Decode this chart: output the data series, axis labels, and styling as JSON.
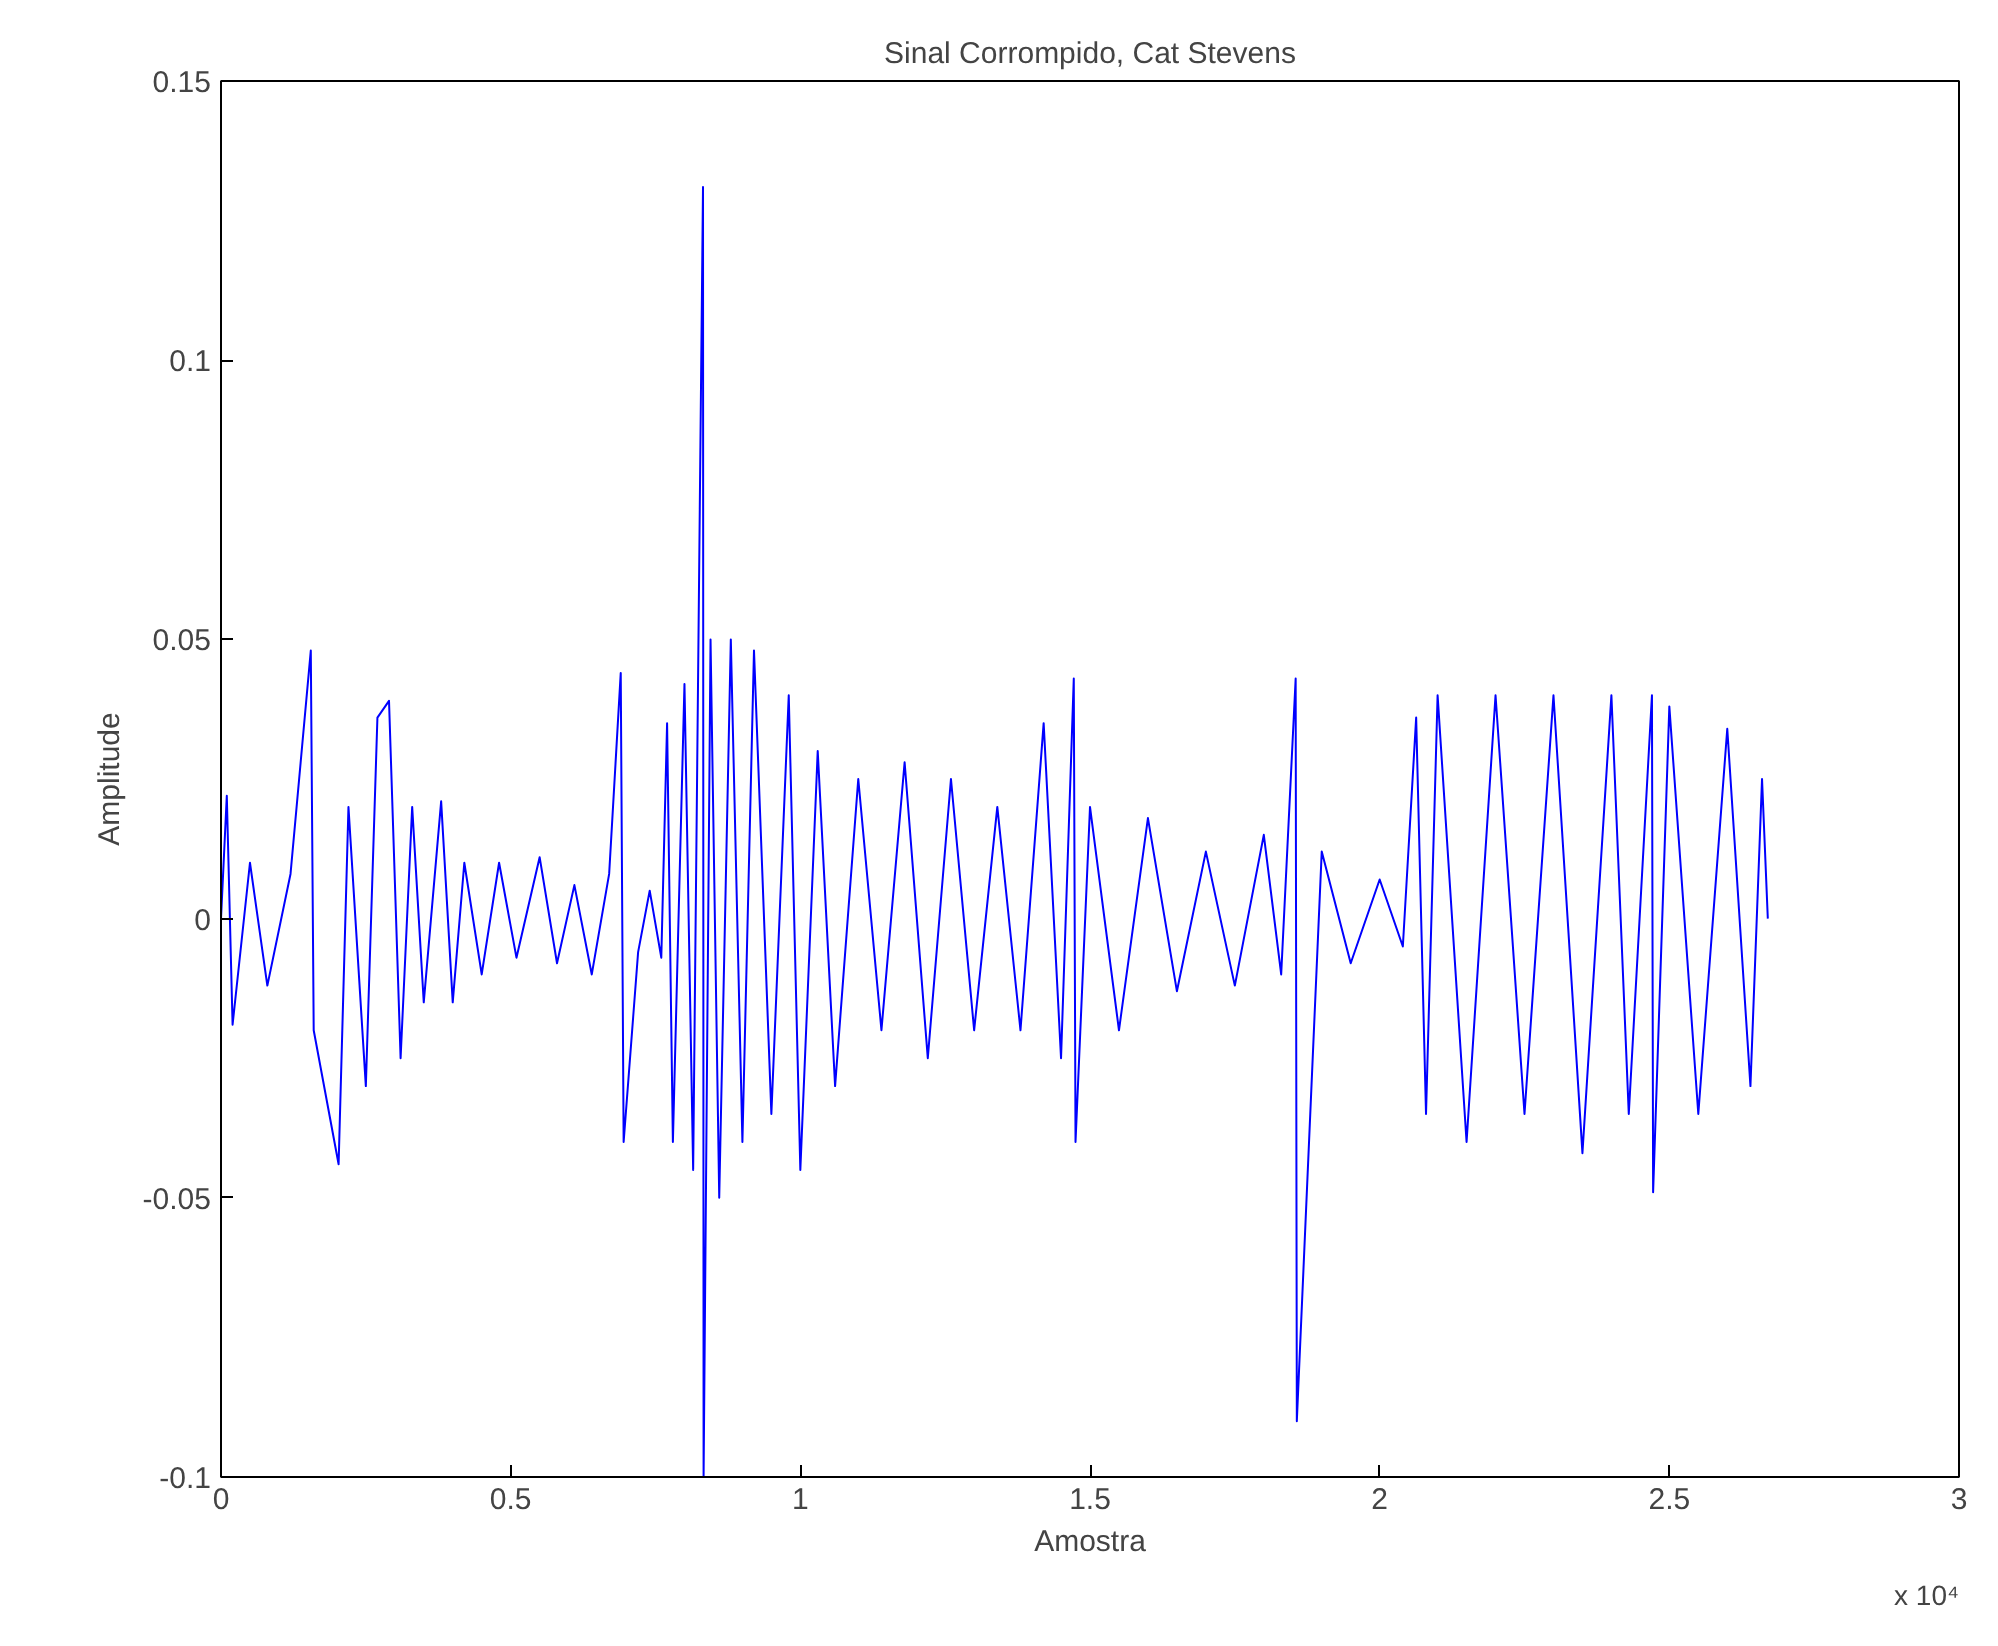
{
  "chart_data": {
    "type": "line",
    "title": "Sinal Corrompido, Cat Stevens",
    "xlabel": "Amostra",
    "ylabel": "Amplitude",
    "annotations": [
      "x 10⁴"
    ],
    "series": [
      {
        "color": "#0000ff",
        "x": [
          0.0,
          0.01,
          0.02,
          0.05,
          0.08,
          0.12,
          0.155,
          0.16,
          0.203,
          0.22,
          0.25,
          0.27,
          0.29,
          0.31,
          0.33,
          0.35,
          0.38,
          0.4,
          0.42,
          0.45,
          0.48,
          0.51,
          0.55,
          0.58,
          0.61,
          0.64,
          0.67,
          0.69,
          0.695,
          0.72,
          0.74,
          0.76,
          0.77,
          0.78,
          0.8,
          0.815,
          0.832,
          0.833,
          0.845,
          0.86,
          0.88,
          0.9,
          0.92,
          0.95,
          0.98,
          1.0,
          1.03,
          1.06,
          1.1,
          1.14,
          1.18,
          1.22,
          1.26,
          1.3,
          1.34,
          1.38,
          1.42,
          1.45,
          1.472,
          1.475,
          1.5,
          1.55,
          1.6,
          1.65,
          1.7,
          1.75,
          1.8,
          1.83,
          1.855,
          1.857,
          1.9,
          1.95,
          2.0,
          2.04,
          2.063,
          2.08,
          2.1,
          2.15,
          2.2,
          2.25,
          2.3,
          2.35,
          2.4,
          2.43,
          2.47,
          2.472,
          2.5,
          2.55,
          2.6,
          2.64,
          2.66,
          2.67
        ],
        "values": [
          0.0,
          0.022,
          -0.019,
          0.01,
          -0.012,
          0.008,
          0.048,
          -0.02,
          -0.044,
          0.02,
          -0.03,
          0.036,
          0.039,
          -0.025,
          0.02,
          -0.015,
          0.021,
          -0.015,
          0.01,
          -0.01,
          0.01,
          -0.007,
          0.011,
          -0.008,
          0.006,
          -0.01,
          0.008,
          0.044,
          -0.04,
          -0.006,
          0.005,
          -0.007,
          0.035,
          -0.04,
          0.042,
          -0.045,
          0.131,
          -0.1,
          0.05,
          -0.05,
          0.05,
          -0.04,
          0.048,
          -0.035,
          0.04,
          -0.045,
          0.03,
          -0.03,
          0.025,
          -0.02,
          0.028,
          -0.025,
          0.025,
          -0.02,
          0.02,
          -0.02,
          0.035,
          -0.025,
          0.043,
          -0.04,
          0.02,
          -0.02,
          0.018,
          -0.013,
          0.012,
          -0.012,
          0.015,
          -0.01,
          0.043,
          -0.09,
          0.012,
          -0.008,
          0.007,
          -0.005,
          0.036,
          -0.035,
          0.04,
          -0.04,
          0.04,
          -0.035,
          0.04,
          -0.042,
          0.04,
          -0.035,
          0.04,
          -0.049,
          0.038,
          -0.035,
          0.034,
          -0.03,
          0.025,
          0.0
        ]
      }
    ],
    "xlim": [
      0,
      3
    ],
    "xticks": [
      0,
      0.5,
      1,
      1.5,
      2,
      2.5,
      3
    ],
    "ylim": [
      -0.1,
      0.15
    ],
    "yticks": [
      -0.1,
      -0.05,
      0,
      0.05,
      0.1,
      0.15
    ],
    "grid": false,
    "line_style": "solid"
  }
}
